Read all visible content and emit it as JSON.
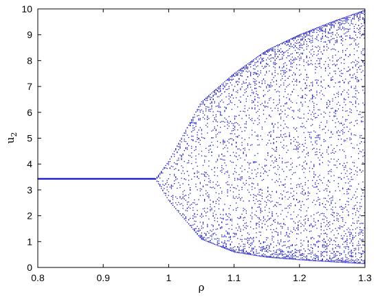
{
  "chart_data": {
    "type": "scatter",
    "title": "",
    "xlabel": "ρ",
    "ylabel": "u",
    "ylabel_subscript": "2",
    "xlim": [
      0.8,
      1.3
    ],
    "ylim": [
      0,
      10
    ],
    "x_ticks": [
      0.8,
      0.9,
      1.0,
      1.1,
      1.2,
      1.3
    ],
    "x_tick_labels": [
      "0.8",
      "0.9",
      "1",
      "1.1",
      "1.2",
      "1.3"
    ],
    "y_ticks": [
      0,
      1,
      2,
      3,
      4,
      5,
      6,
      7,
      8,
      9,
      10
    ],
    "y_tick_labels": [
      "0",
      "1",
      "2",
      "3",
      "4",
      "5",
      "6",
      "7",
      "8",
      "9",
      "10"
    ],
    "grid": false,
    "series": [
      {
        "marker_color": "#1010c8",
        "fixed_point": {
          "x_range": [
            0.8,
            0.98
          ],
          "y": 3.42
        },
        "bifurcation_x": 0.98,
        "envelope": [
          {
            "x": 1.0,
            "upper": 4.1,
            "lower": 2.6
          },
          {
            "x": 1.05,
            "upper": 6.4,
            "lower": 1.1
          },
          {
            "x": 1.1,
            "upper": 7.5,
            "lower": 0.6
          },
          {
            "x": 1.15,
            "upper": 8.4,
            "lower": 0.4
          },
          {
            "x": 1.2,
            "upper": 9.0,
            "lower": 0.3
          },
          {
            "x": 1.25,
            "upper": 9.5,
            "lower": 0.22
          },
          {
            "x": 1.3,
            "upper": 9.95,
            "lower": 0.15
          }
        ]
      }
    ]
  }
}
